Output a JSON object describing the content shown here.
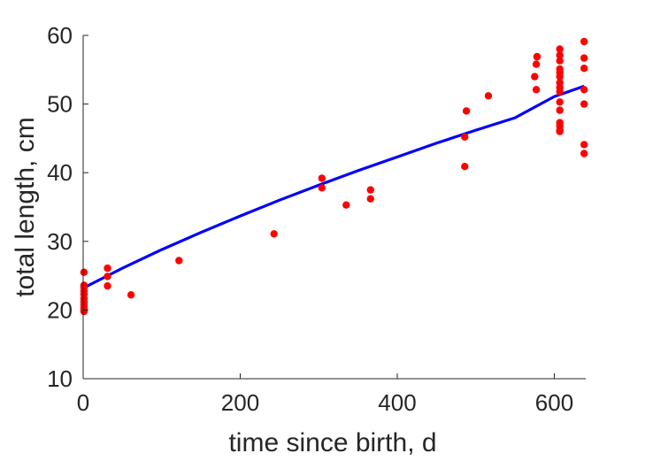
{
  "chart_data": {
    "type": "scatter",
    "xlabel": "time since birth, d",
    "ylabel": "total length, cm",
    "xlim": [
      0,
      640
    ],
    "ylim": [
      10,
      60
    ],
    "xticks": [
      0,
      200,
      400,
      600
    ],
    "yticks": [
      10,
      20,
      30,
      40,
      50,
      60
    ],
    "grid": false,
    "legend": "none",
    "colors": {
      "points": "#ff0000",
      "fit": "#0000ff",
      "axis": "#262626"
    },
    "series": [
      {
        "kind": "scatter",
        "x": [
          1,
          1,
          1,
          1,
          1,
          1,
          1,
          1,
          1,
          1,
          1,
          31,
          31,
          31,
          61,
          122,
          243,
          304,
          304,
          335,
          366,
          366,
          486,
          486,
          488,
          516,
          575,
          577,
          577,
          578,
          578,
          607,
          607,
          607,
          607,
          607,
          607,
          607,
          607,
          607,
          607,
          607,
          607,
          607,
          607,
          607,
          638,
          638,
          638,
          638,
          638,
          638,
          638
        ],
        "y": [
          25.5,
          23.6,
          23.3,
          22.8,
          22.3,
          21.7,
          21.2,
          20.8,
          20.4,
          20.1,
          19.8,
          26.1,
          24.9,
          23.5,
          22.2,
          27.2,
          31.1,
          39.2,
          37.8,
          35.3,
          37.5,
          36.2,
          45.2,
          40.9,
          49.0,
          51.2,
          54.0,
          52.1,
          55.8,
          56.9,
          56.9,
          58.0,
          57.1,
          56.3,
          55.1,
          54.6,
          54.0,
          53.1,
          52.4,
          51.8,
          50.3,
          49.1,
          47.3,
          46.8,
          46.2,
          46.0,
          59.1,
          56.7,
          55.2,
          52.1,
          50.0,
          44.1,
          42.8
        ]
      },
      {
        "kind": "line",
        "x": [
          0,
          50,
          100,
          150,
          200,
          250,
          300,
          350,
          400,
          450,
          500,
          550,
          600,
          638
        ],
        "y": [
          23.2,
          26.1,
          28.8,
          31.3,
          33.7,
          36.0,
          38.2,
          40.3,
          42.3,
          44.3,
          46.2,
          48.0,
          51.1,
          52.6
        ]
      }
    ]
  }
}
